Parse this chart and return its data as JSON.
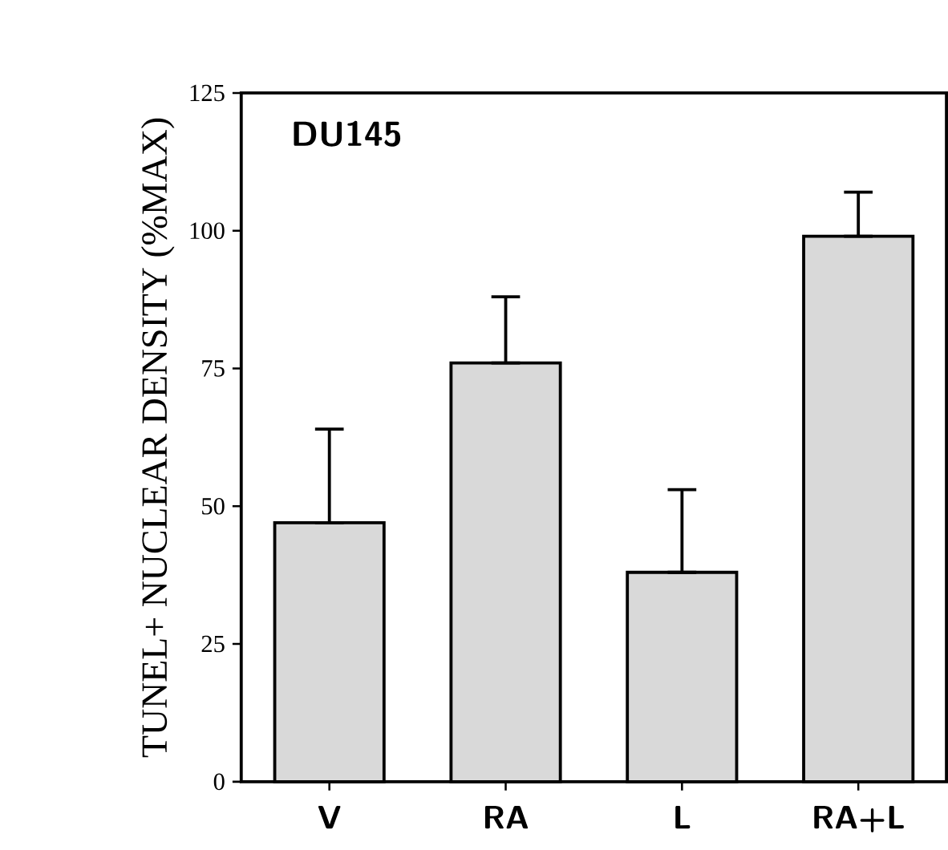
{
  "chart_data": {
    "type": "bar",
    "ylabel": "TUNEL+ NUCLEAR DENSITY (%MAX)",
    "annotations": [
      "DU145"
    ],
    "categories": [
      "V",
      "RA",
      "L",
      "RA+L"
    ],
    "values": [
      47,
      76,
      38,
      99
    ],
    "errors": [
      [
        47,
        64
      ],
      [
        76,
        88
      ],
      [
        38,
        53
      ],
      [
        99,
        107
      ]
    ],
    "color": "#d9d9d9",
    "ylim": [
      0,
      125
    ],
    "yticks": [
      0,
      25,
      50,
      75,
      100,
      125
    ],
    "grid": false
  }
}
